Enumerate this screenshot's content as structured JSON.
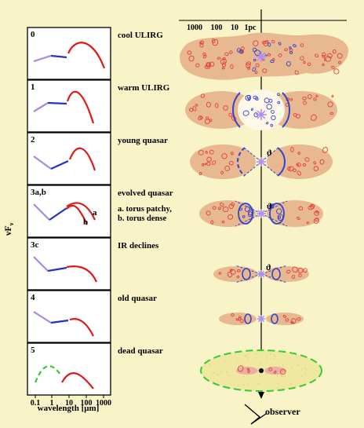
{
  "panels": [
    {
      "id": "0",
      "label": "cool ULIRG"
    },
    {
      "id": "1",
      "label": "warm ULIRG"
    },
    {
      "id": "2",
      "label": "young quasar"
    },
    {
      "id": "3a,b",
      "label": "evolved quasar",
      "notes": [
        "a. torus patchy,",
        "b. torus dense"
      ],
      "curve_labels": [
        "a",
        "b"
      ]
    },
    {
      "id": "3c",
      "label": "IR declines"
    },
    {
      "id": "4",
      "label": "old quasar"
    },
    {
      "id": "5",
      "label": "dead quasar"
    }
  ],
  "y_axis_label_main": "νF",
  "y_axis_label_sub": "ν",
  "x_axis": {
    "label": "wavelength [μm]",
    "ticks": [
      "0.1",
      "1",
      "10",
      "100",
      "1000"
    ]
  },
  "scale_bar": {
    "labels": [
      "1000",
      "100",
      "10",
      "1pc"
    ]
  },
  "theta_symbol": "ϑ",
  "observer_label": "observer",
  "colors": {
    "background": "#f8f4c8",
    "panel": "#ffffff",
    "uv_segment": "#a888e0",
    "optical_segment": "#2233c8",
    "ir_segment": "#e01818",
    "dead_segment": "#33cc33",
    "dust_cloud": "#e8b890",
    "clump_red": "#e04040",
    "clump_blue": "#3344cc",
    "star": "#b090f0",
    "dead_disk": "#f0e8a0"
  }
}
